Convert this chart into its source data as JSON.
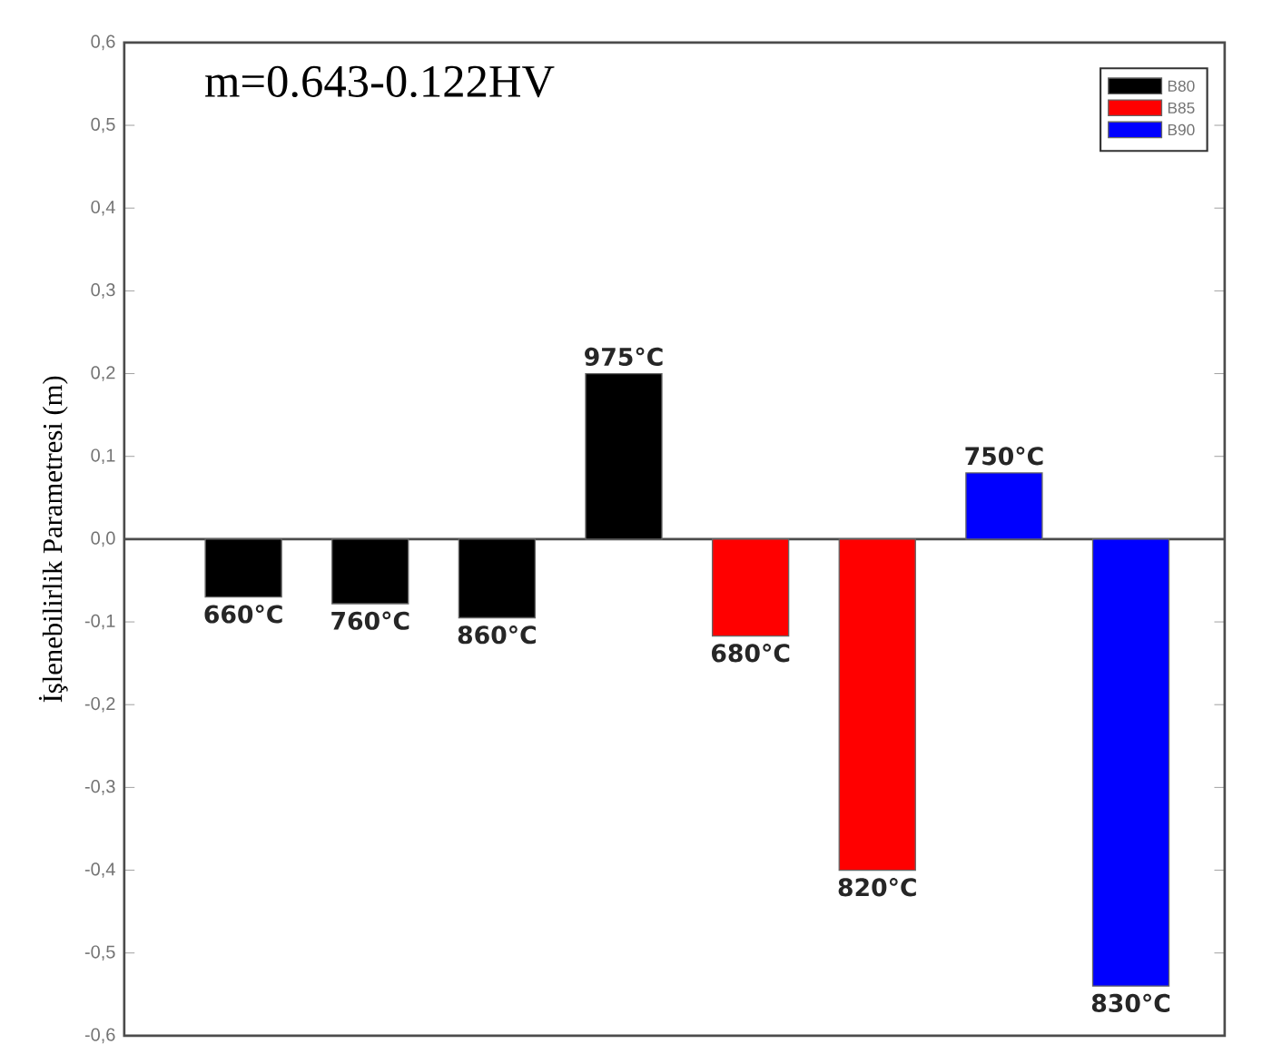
{
  "chart_data": {
    "type": "bar",
    "ylabel": "İşlenebilirlik Parametresi (m)",
    "categories": [
      "660°C",
      "760°C",
      "860°C",
      "975°C",
      "680°C",
      "820°C",
      "750°C",
      "830°C"
    ],
    "series": [
      {
        "name": "B80",
        "color": "#000000",
        "values": [
          -0.07,
          -0.078,
          -0.095,
          0.2,
          null,
          null,
          null,
          null
        ]
      },
      {
        "name": "B85",
        "color": "#ff0000",
        "values": [
          null,
          null,
          null,
          null,
          -0.117,
          -0.4,
          null,
          null
        ]
      },
      {
        "name": "B90",
        "color": "#0000ff",
        "values": [
          null,
          null,
          null,
          null,
          null,
          null,
          0.08,
          -0.54
        ]
      }
    ],
    "ylim": [
      -0.6,
      0.6
    ],
    "yticks": [
      {
        "value": -0.6,
        "label": "-0,6"
      },
      {
        "value": -0.5,
        "label": "-0,5"
      },
      {
        "value": -0.4,
        "label": "-0,4"
      },
      {
        "value": -0.3,
        "label": "-0,3"
      },
      {
        "value": -0.2,
        "label": "-0,2"
      },
      {
        "value": -0.1,
        "label": "-0,1"
      },
      {
        "value": 0.0,
        "label": "0,0"
      },
      {
        "value": 0.1,
        "label": "0,1"
      },
      {
        "value": 0.2,
        "label": "0,2"
      },
      {
        "value": 0.3,
        "label": "0,3"
      },
      {
        "value": 0.4,
        "label": "0,4"
      },
      {
        "value": 0.5,
        "label": "0,5"
      },
      {
        "value": 0.6,
        "label": "0,6"
      }
    ],
    "annotations": [
      "m=0.643-0.122HV"
    ],
    "legend": "top right"
  }
}
